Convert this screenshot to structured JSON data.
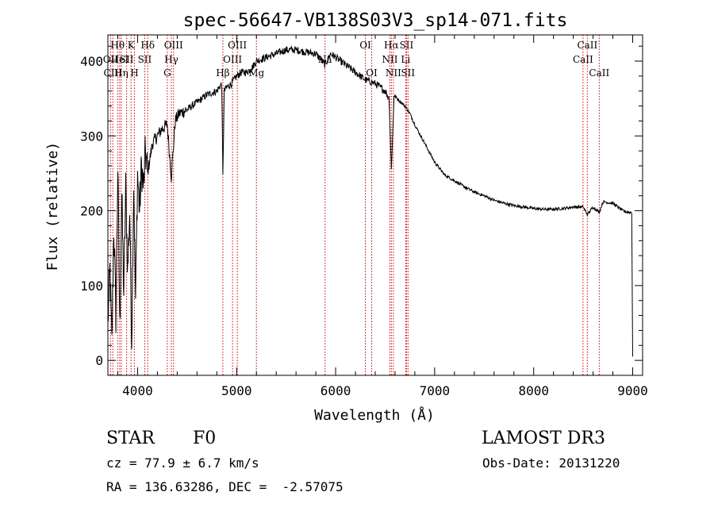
{
  "chart_data": {
    "type": "line",
    "title": "spec-56647-VB138S03V3_sp14-071.fits",
    "xlabel": "Wavelength (Å)",
    "ylabel": "Flux (relative)",
    "xlim": [
      3700,
      9100
    ],
    "ylim": [
      -20,
      435
    ],
    "x_ticks": [
      4000,
      5000,
      6000,
      7000,
      8000,
      9000
    ],
    "y_ticks": [
      0,
      100,
      200,
      300,
      400
    ],
    "series": [
      {
        "name": "flux",
        "x": [
          3700,
          3720,
          3740,
          3760,
          3780,
          3800,
          3820,
          3840,
          3860,
          3880,
          3900,
          3920,
          3940,
          3960,
          3980,
          4000,
          4020,
          4040,
          4060,
          4080,
          4100,
          4150,
          4200,
          4250,
          4300,
          4340,
          4380,
          4420,
          4500,
          4600,
          4700,
          4800,
          4850,
          4861,
          4875,
          4900,
          4950,
          5000,
          5050,
          5100,
          5150,
          5200,
          5300,
          5400,
          5500,
          5600,
          5700,
          5800,
          5893,
          5950,
          6000,
          6100,
          6200,
          6300,
          6400,
          6500,
          6540,
          6563,
          6590,
          6620,
          6700,
          6750,
          6800,
          6900,
          7000,
          7100,
          7200,
          7300,
          7400,
          7500,
          7600,
          7700,
          7800,
          7900,
          8000,
          8100,
          8200,
          8300,
          8400,
          8500,
          8542,
          8600,
          8662,
          8700,
          8800,
          8900,
          8950,
          8990,
          9000
        ],
        "values": [
          50,
          120,
          20,
          180,
          60,
          260,
          40,
          220,
          90,
          230,
          120,
          200,
          30,
          240,
          80,
          250,
          200,
          260,
          230,
          280,
          250,
          290,
          300,
          310,
          315,
          245,
          320,
          330,
          335,
          345,
          355,
          360,
          370,
          245,
          360,
          365,
          370,
          380,
          385,
          385,
          390,
          400,
          405,
          410,
          415,
          415,
          412,
          410,
          395,
          410,
          405,
          395,
          385,
          375,
          370,
          360,
          350,
          255,
          355,
          350,
          340,
          330,
          315,
          290,
          265,
          248,
          240,
          232,
          225,
          220,
          214,
          210,
          207,
          205,
          203,
          202,
          202,
          203,
          205,
          205,
          195,
          205,
          198,
          212,
          210,
          200,
          198,
          198,
          5
        ]
      }
    ],
    "lines": [
      {
        "wavelength": 3727,
        "label": "OII",
        "row": 1
      },
      {
        "wavelength": 3750,
        "label": "CIII",
        "row": 2
      },
      {
        "wavelength": 3798,
        "label": "Hθ",
        "row": 0
      },
      {
        "wavelength": 3819,
        "label": "HeI",
        "row": 1
      },
      {
        "wavelength": 3835,
        "label": "Hη",
        "row": 2
      },
      {
        "wavelength": 3889,
        "label": "SII",
        "row": 1
      },
      {
        "wavelength": 3934,
        "label": "K",
        "row": 0
      },
      {
        "wavelength": 3968,
        "label": "H",
        "row": 2
      },
      {
        "wavelength": 4072,
        "label": "SII",
        "row": 1
      },
      {
        "wavelength": 4102,
        "label": "Hδ",
        "row": 0
      },
      {
        "wavelength": 4300,
        "label": "G",
        "row": 2
      },
      {
        "wavelength": 4341,
        "label": "Hγ",
        "row": 1
      },
      {
        "wavelength": 4363,
        "label": "OIII",
        "row": 0
      },
      {
        "wavelength": 4861,
        "label": "Hβ",
        "row": 2
      },
      {
        "wavelength": 4959,
        "label": "OIII",
        "row": 1
      },
      {
        "wavelength": 5007,
        "label": "OIII",
        "row": 0
      },
      {
        "wavelength": 5200,
        "label": "Mg",
        "row": 2
      },
      {
        "wavelength": 5893,
        "label": "Na",
        "row": 1
      },
      {
        "wavelength": 6300,
        "label": "OI",
        "row": 0
      },
      {
        "wavelength": 6364,
        "label": "OI",
        "row": 2
      },
      {
        "wavelength": 6548,
        "label": "NII",
        "row": 1
      },
      {
        "wavelength": 6563,
        "label": "Hα",
        "row": 0
      },
      {
        "wavelength": 6583,
        "label": "NII",
        "row": 2
      },
      {
        "wavelength": 6707,
        "label": "Li",
        "row": 1
      },
      {
        "wavelength": 6716,
        "label": "SII",
        "row": 0
      },
      {
        "wavelength": 6731,
        "label": "SII",
        "row": 2
      },
      {
        "wavelength": 8498,
        "label": "CaII",
        "row": 1
      },
      {
        "wavelength": 8542,
        "label": "CaII",
        "row": 0
      },
      {
        "wavelength": 8662,
        "label": "CaII",
        "row": 2
      }
    ]
  },
  "info": {
    "class_label": "STAR",
    "subclass": "F0",
    "survey": "LAMOST DR3",
    "cz": "cz = 77.9 ± 6.7 km/s",
    "obs_date": "Obs-Date: 20131220",
    "coords": "RA = 136.63286, DEC =  -2.57075"
  },
  "colors": {
    "line_marker": "#cc0000",
    "spectrum": "#000000"
  }
}
